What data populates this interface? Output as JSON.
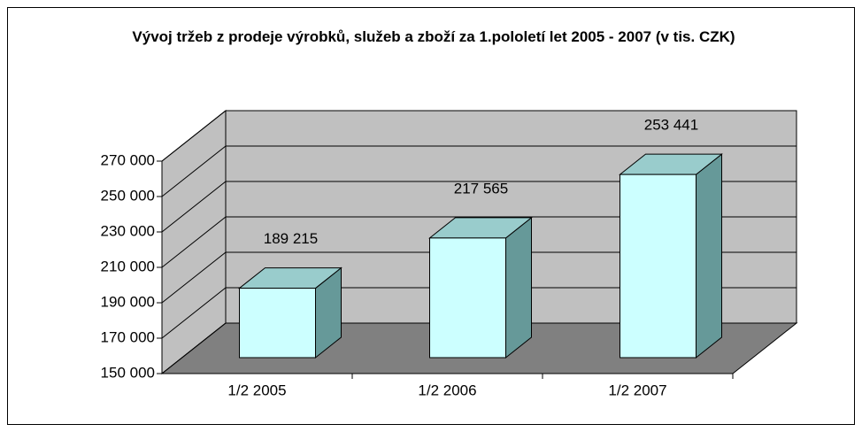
{
  "chart_data": {
    "type": "bar3d",
    "title": "Vývoj tržeb z prodeje výrobků, služeb a zboží za 1.pololetí let 2005 - 2007 (v tis. CZK)",
    "categories": [
      "1/2 2005",
      "1/2 2006",
      "1/2 2007"
    ],
    "values": [
      189215,
      217565,
      253441
    ],
    "value_labels": [
      "189 215",
      "217 565",
      "253 441"
    ],
    "color": "#ccffff",
    "ylim": [
      150000,
      270000
    ],
    "yticks": [
      {
        "value": 150000,
        "label": "150 000"
      },
      {
        "value": 170000,
        "label": "170 000"
      },
      {
        "value": 190000,
        "label": "190 000"
      },
      {
        "value": 210000,
        "label": "210 000"
      },
      {
        "value": 230000,
        "label": "230 000"
      },
      {
        "value": 250000,
        "label": "250 000"
      },
      {
        "value": 270000,
        "label": "270 000"
      }
    ],
    "grid": true
  }
}
